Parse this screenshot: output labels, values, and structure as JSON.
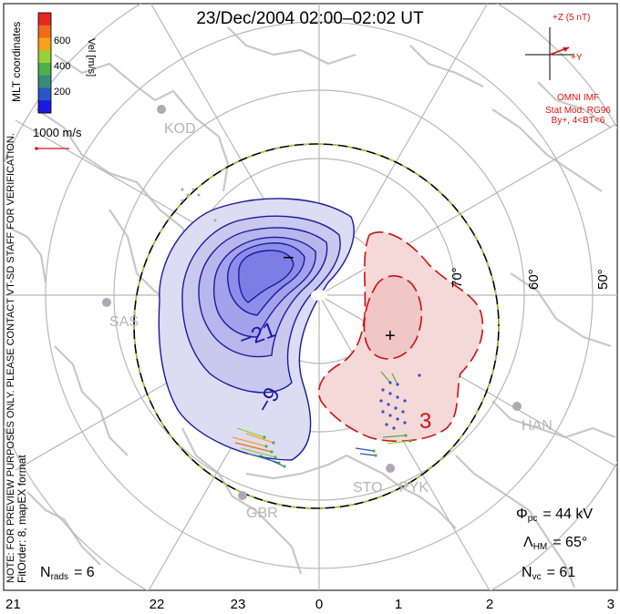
{
  "title": "23/Dec/2004 02:00–02:02 UT",
  "colorbar": {
    "ticks": [
      "600",
      "400",
      "200"
    ],
    "label": "Vel [m/s]",
    "colors": [
      "#e8251f",
      "#f06a1a",
      "#f5a31b",
      "#9ad03a",
      "#4bb04a",
      "#3a8a7a",
      "#2b55c8",
      "#1a1ae0"
    ]
  },
  "coord_label": "MLT coordinates",
  "scale_vector": {
    "label": "1000 m/s"
  },
  "imf": {
    "z_label": "+Z (5 nT)",
    "y_label": "+Y",
    "source": "OMNI IMF",
    "model": "Stat Mod: RG96",
    "condition": "By+, 4<BT<6"
  },
  "notes": {
    "preview": "NOTE: FOR PREVIEW PURPOSES ONLY. PLEASE CONTACT VT-SD STAFF FOR VERIFICATION.",
    "fit": "FitOrder: 8, mapEX format"
  },
  "stations": [
    "KOD",
    "SAS",
    "GBR",
    "STO",
    "PYK",
    "HAN"
  ],
  "lat_labels": [
    "70°",
    "60°",
    "50°"
  ],
  "contour_labels": {
    "minus": "−",
    "plus": "+",
    "neg21": "−21",
    "neg9": "−9",
    "pos3": "3"
  },
  "stats": {
    "nrads_sym": "N",
    "nrads_sub": "rads",
    "nrads_val": "= 6",
    "phi_sym": "Φ",
    "phi_sub": "pc",
    "phi_val": "= 44 kV",
    "lam_sym": "Λ",
    "lam_sub": "HM",
    "lam_val": "= 65°",
    "nvc_sym": "N",
    "nvc_sub": "vc",
    "nvc_val": "= 61"
  },
  "mlt_axis": [
    "21",
    "22",
    "23",
    "0",
    "1",
    "2",
    "3"
  ],
  "palette": {
    "neg_fill_outer": "#dcdcf2",
    "neg_fill_mid": "#c4c4f0",
    "neg_fill_core": "#8a8ae8",
    "neg_line": "#1a1aa0",
    "pos_fill": "#f5d8d8",
    "pos_line": "#cc1111",
    "land": "#c8c8c8",
    "grid": "#b8b8b8",
    "imf_color": "#dd1111"
  }
}
